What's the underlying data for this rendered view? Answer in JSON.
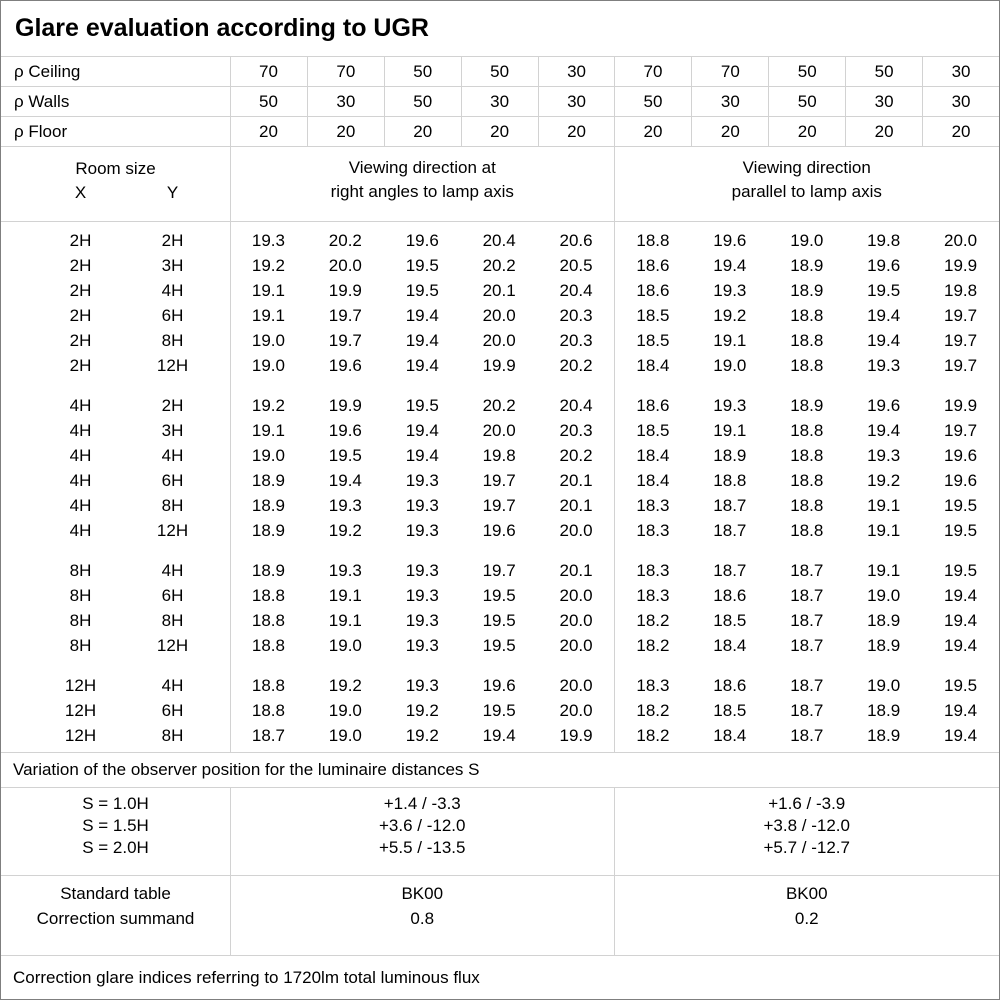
{
  "title": "Glare evaluation according to UGR",
  "reflectances": {
    "rows": [
      {
        "label": "ρ Ceiling",
        "values": [
          "70",
          "70",
          "50",
          "50",
          "30",
          "70",
          "70",
          "50",
          "50",
          "30"
        ]
      },
      {
        "label": "ρ Walls",
        "values": [
          "50",
          "30",
          "50",
          "30",
          "30",
          "50",
          "30",
          "50",
          "30",
          "30"
        ]
      },
      {
        "label": "ρ Floor",
        "values": [
          "20",
          "20",
          "20",
          "20",
          "20",
          "20",
          "20",
          "20",
          "20",
          "20"
        ]
      }
    ]
  },
  "room_size": {
    "title": "Room size",
    "x": "X",
    "y": "Y"
  },
  "viewing_headers": {
    "perpendicular": [
      "Viewing direction at",
      "right angles to lamp axis"
    ],
    "parallel": [
      "Viewing direction",
      "parallel to lamp axis"
    ]
  },
  "ugr_table": {
    "groups": [
      {
        "rows": [
          {
            "x": "2H",
            "y": "2H",
            "perpendicular": [
              "19.3",
              "20.2",
              "19.6",
              "20.4",
              "20.6"
            ],
            "parallel": [
              "18.8",
              "19.6",
              "19.0",
              "19.8",
              "20.0"
            ]
          },
          {
            "x": "2H",
            "y": "3H",
            "perpendicular": [
              "19.2",
              "20.0",
              "19.5",
              "20.2",
              "20.5"
            ],
            "parallel": [
              "18.6",
              "19.4",
              "18.9",
              "19.6",
              "19.9"
            ]
          },
          {
            "x": "2H",
            "y": "4H",
            "perpendicular": [
              "19.1",
              "19.9",
              "19.5",
              "20.1",
              "20.4"
            ],
            "parallel": [
              "18.6",
              "19.3",
              "18.9",
              "19.5",
              "19.8"
            ]
          },
          {
            "x": "2H",
            "y": "6H",
            "perpendicular": [
              "19.1",
              "19.7",
              "19.4",
              "20.0",
              "20.3"
            ],
            "parallel": [
              "18.5",
              "19.2",
              "18.8",
              "19.4",
              "19.7"
            ]
          },
          {
            "x": "2H",
            "y": "8H",
            "perpendicular": [
              "19.0",
              "19.7",
              "19.4",
              "20.0",
              "20.3"
            ],
            "parallel": [
              "18.5",
              "19.1",
              "18.8",
              "19.4",
              "19.7"
            ]
          },
          {
            "x": "2H",
            "y": "12H",
            "perpendicular": [
              "19.0",
              "19.6",
              "19.4",
              "19.9",
              "20.2"
            ],
            "parallel": [
              "18.4",
              "19.0",
              "18.8",
              "19.3",
              "19.7"
            ]
          }
        ]
      },
      {
        "rows": [
          {
            "x": "4H",
            "y": "2H",
            "perpendicular": [
              "19.2",
              "19.9",
              "19.5",
              "20.2",
              "20.4"
            ],
            "parallel": [
              "18.6",
              "19.3",
              "18.9",
              "19.6",
              "19.9"
            ]
          },
          {
            "x": "4H",
            "y": "3H",
            "perpendicular": [
              "19.1",
              "19.6",
              "19.4",
              "20.0",
              "20.3"
            ],
            "parallel": [
              "18.5",
              "19.1",
              "18.8",
              "19.4",
              "19.7"
            ]
          },
          {
            "x": "4H",
            "y": "4H",
            "perpendicular": [
              "19.0",
              "19.5",
              "19.4",
              "19.8",
              "20.2"
            ],
            "parallel": [
              "18.4",
              "18.9",
              "18.8",
              "19.3",
              "19.6"
            ]
          },
          {
            "x": "4H",
            "y": "6H",
            "perpendicular": [
              "18.9",
              "19.4",
              "19.3",
              "19.7",
              "20.1"
            ],
            "parallel": [
              "18.4",
              "18.8",
              "18.8",
              "19.2",
              "19.6"
            ]
          },
          {
            "x": "4H",
            "y": "8H",
            "perpendicular": [
              "18.9",
              "19.3",
              "19.3",
              "19.7",
              "20.1"
            ],
            "parallel": [
              "18.3",
              "18.7",
              "18.8",
              "19.1",
              "19.5"
            ]
          },
          {
            "x": "4H",
            "y": "12H",
            "perpendicular": [
              "18.9",
              "19.2",
              "19.3",
              "19.6",
              "20.0"
            ],
            "parallel": [
              "18.3",
              "18.7",
              "18.8",
              "19.1",
              "19.5"
            ]
          }
        ]
      },
      {
        "rows": [
          {
            "x": "8H",
            "y": "4H",
            "perpendicular": [
              "18.9",
              "19.3",
              "19.3",
              "19.7",
              "20.1"
            ],
            "parallel": [
              "18.3",
              "18.7",
              "18.7",
              "19.1",
              "19.5"
            ]
          },
          {
            "x": "8H",
            "y": "6H",
            "perpendicular": [
              "18.8",
              "19.1",
              "19.3",
              "19.5",
              "20.0"
            ],
            "parallel": [
              "18.3",
              "18.6",
              "18.7",
              "19.0",
              "19.4"
            ]
          },
          {
            "x": "8H",
            "y": "8H",
            "perpendicular": [
              "18.8",
              "19.1",
              "19.3",
              "19.5",
              "20.0"
            ],
            "parallel": [
              "18.2",
              "18.5",
              "18.7",
              "18.9",
              "19.4"
            ]
          },
          {
            "x": "8H",
            "y": "12H",
            "perpendicular": [
              "18.8",
              "19.0",
              "19.3",
              "19.5",
              "20.0"
            ],
            "parallel": [
              "18.2",
              "18.4",
              "18.7",
              "18.9",
              "19.4"
            ]
          }
        ]
      },
      {
        "rows": [
          {
            "x": "12H",
            "y": "4H",
            "perpendicular": [
              "18.8",
              "19.2",
              "19.3",
              "19.6",
              "20.0"
            ],
            "parallel": [
              "18.3",
              "18.6",
              "18.7",
              "19.0",
              "19.5"
            ]
          },
          {
            "x": "12H",
            "y": "6H",
            "perpendicular": [
              "18.8",
              "19.0",
              "19.2",
              "19.5",
              "20.0"
            ],
            "parallel": [
              "18.2",
              "18.5",
              "18.7",
              "18.9",
              "19.4"
            ]
          },
          {
            "x": "12H",
            "y": "8H",
            "perpendicular": [
              "18.7",
              "19.0",
              "19.2",
              "19.4",
              "19.9"
            ],
            "parallel": [
              "18.2",
              "18.4",
              "18.7",
              "18.9",
              "19.4"
            ]
          }
        ]
      }
    ]
  },
  "variation_note": "Variation of the observer position for the luminaire distances S",
  "observer_variation": {
    "rows": [
      {
        "label": "S = 1.0H",
        "perpendicular": "+1.4 / -3.3",
        "parallel": "+1.6 / -3.9"
      },
      {
        "label": "S = 1.5H",
        "perpendicular": "+3.6 / -12.0",
        "parallel": "+3.8 / -12.0"
      },
      {
        "label": "S = 2.0H",
        "perpendicular": "+5.5 / -13.5",
        "parallel": "+5.7 / -12.7"
      }
    ]
  },
  "summary": {
    "rows": [
      {
        "label": "Standard table",
        "perpendicular": "BK00",
        "parallel": "BK00"
      },
      {
        "label": "Correction summand",
        "perpendicular": "0.8",
        "parallel": "0.2"
      }
    ]
  },
  "footer": "Correction glare indices referring to 1720lm total luminous flux",
  "colors": {
    "grid_line": "#d2d2d2",
    "outer_border": "#7f7f7f",
    "text": "#000000",
    "background": "#ffffff"
  }
}
